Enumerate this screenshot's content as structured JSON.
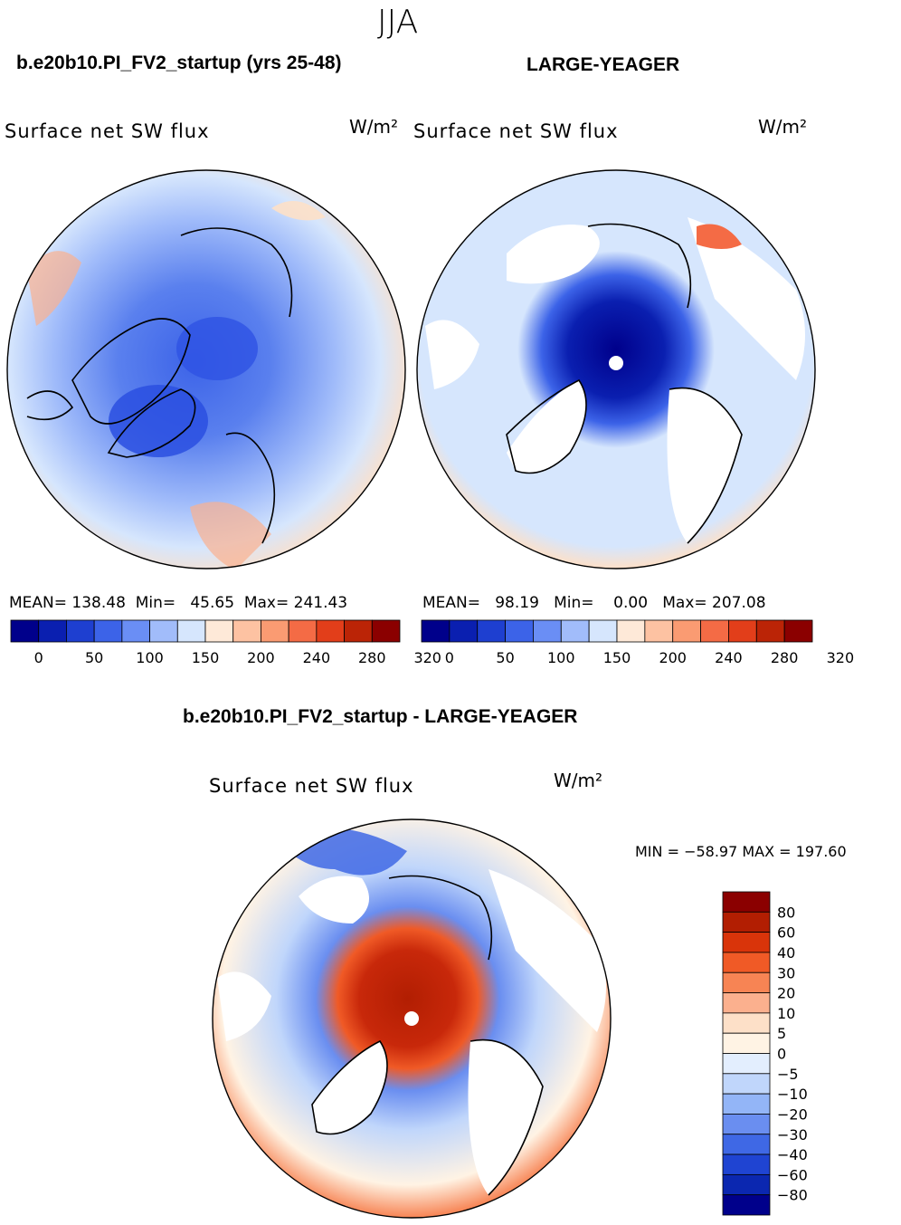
{
  "season": "JJA",
  "left_panel": {
    "case": "b.e20b10.PI_FV2_startup (yrs 25-48)",
    "variable": "Surface net SW flux",
    "units": "W/m²",
    "stats": {
      "mean_label": "MEAN=",
      "mean": "138.48",
      "min_label": "Min=",
      "min": "45.65",
      "max_label": "Max=",
      "max": "241.43"
    }
  },
  "right_panel": {
    "case": "LARGE-YEAGER",
    "variable": "Surface net SW flux",
    "units": "W/m²",
    "stats": {
      "mean_label": "MEAN=",
      "mean": "98.19",
      "min_label": "Min=",
      "min": "0.00",
      "max_label": "Max=",
      "max": "207.08"
    }
  },
  "abs_colorbar": {
    "colors": [
      "#00008b",
      "#0a1fb0",
      "#1e3fd0",
      "#3c63e8",
      "#6a8ef5",
      "#a1bcfa",
      "#d6e6fd",
      "#fee9d8",
      "#fdc2a2",
      "#fa9b72",
      "#f46b45",
      "#e23e1a",
      "#bb2406",
      "#8b0000"
    ],
    "tick_labels": [
      "0",
      "50",
      "100",
      "150",
      "200",
      "240",
      "280",
      "320"
    ]
  },
  "diff_panel": {
    "title": "b.e20b10.PI_FV2_startup - LARGE-YEAGER",
    "variable": "Surface net SW flux",
    "units": "W/m²",
    "minmax": "MIN = −58.97  MAX = 197.60"
  },
  "diff_colorbar": {
    "colors": [
      "#8b0000",
      "#b21e02",
      "#d9340a",
      "#f05a26",
      "#f78454",
      "#fbb08e",
      "#fde0c8",
      "#fff3e4",
      "#e3eefe",
      "#c0d6fb",
      "#93b5f7",
      "#6a8ef0",
      "#3f68e5",
      "#1f44d2",
      "#0b27b0",
      "#00008b"
    ],
    "tick_labels": [
      "80",
      "60",
      "40",
      "30",
      "20",
      "10",
      "5",
      "0",
      "−5",
      "−10",
      "−20",
      "−30",
      "−40",
      "−60",
      "−80"
    ]
  }
}
